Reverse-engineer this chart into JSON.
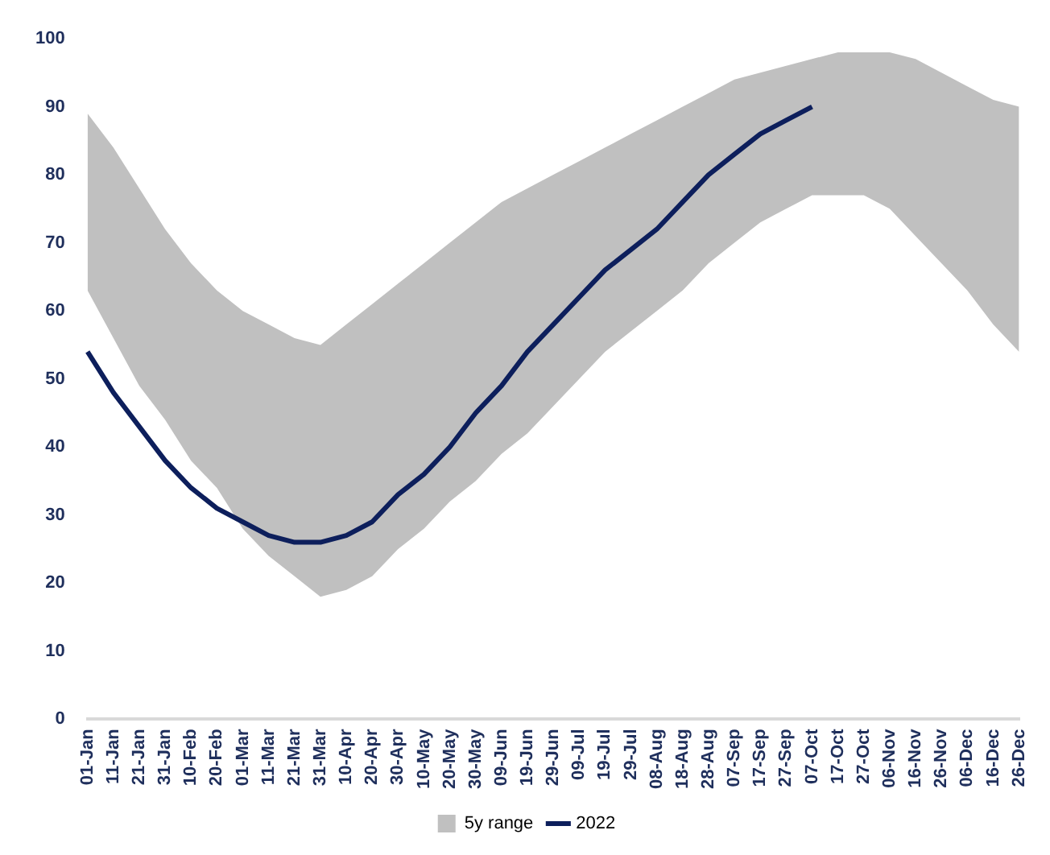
{
  "chart_data": {
    "type": "line",
    "categories": [
      "01-Jan",
      "11-Jan",
      "21-Jan",
      "31-Jan",
      "10-Feb",
      "20-Feb",
      "01-Mar",
      "11-Mar",
      "21-Mar",
      "31-Mar",
      "10-Apr",
      "20-Apr",
      "30-Apr",
      "10-May",
      "20-May",
      "30-May",
      "09-Jun",
      "19-Jun",
      "29-Jun",
      "09-Jul",
      "19-Jul",
      "29-Jul",
      "08-Aug",
      "18-Aug",
      "28-Aug",
      "07-Sep",
      "17-Sep",
      "27-Sep",
      "07-Oct",
      "17-Oct",
      "27-Oct",
      "06-Nov",
      "16-Nov",
      "26-Nov",
      "06-Dec",
      "16-Dec",
      "26-Dec"
    ],
    "series": [
      {
        "name": "5y range",
        "type": "area",
        "color": "#c0c0c0",
        "values": [
          null,
          null,
          null,
          null,
          null,
          null,
          null,
          null,
          null,
          null,
          null,
          null,
          null,
          null,
          null,
          null,
          null,
          null,
          null,
          null,
          null,
          null,
          null,
          null,
          null,
          null,
          null,
          null,
          null,
          null,
          null,
          null,
          null,
          null,
          null,
          null,
          null
        ],
        "lower": [
          63,
          56,
          49,
          44,
          38,
          34,
          28,
          24,
          21,
          18,
          19,
          21,
          25,
          28,
          32,
          35,
          39,
          42,
          46,
          50,
          54,
          57,
          60,
          63,
          67,
          70,
          73,
          75,
          77,
          77,
          77,
          75,
          71,
          67,
          63,
          58,
          54
        ],
        "upper": [
          89,
          84,
          78,
          72,
          67,
          63,
          60,
          58,
          56,
          55,
          58,
          61,
          64,
          67,
          70,
          73,
          76,
          78,
          80,
          82,
          84,
          86,
          88,
          90,
          92,
          94,
          95,
          96,
          97,
          98,
          98,
          98,
          97,
          95,
          93,
          91,
          90
        ]
      },
      {
        "name": "2022",
        "type": "line",
        "color": "#0d1f5c",
        "values": [
          54,
          48,
          43,
          38,
          34,
          31,
          29,
          27,
          26,
          26,
          27,
          29,
          33,
          36,
          40,
          45,
          49,
          54,
          58,
          62,
          66,
          69,
          72,
          76,
          80,
          83,
          86,
          88,
          90,
          null,
          null,
          null,
          null,
          null,
          null,
          null,
          null
        ]
      }
    ],
    "ylim": [
      0,
      100
    ],
    "yticks": [
      0,
      10,
      20,
      30,
      40,
      50,
      60,
      70,
      80,
      90,
      100
    ],
    "grid": false,
    "legend": "bottom",
    "marker": "none",
    "line_style": "solid"
  }
}
